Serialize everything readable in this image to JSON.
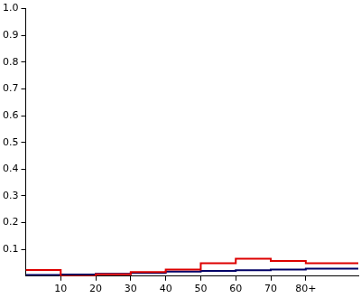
{
  "chart_data": {
    "type": "histogram",
    "bins": [
      0,
      10,
      20,
      30,
      40,
      50,
      60,
      70,
      80,
      95
    ],
    "series": [
      {
        "color": "#dd0000",
        "values": [
          0.023,
          0.0,
          0.007,
          0.015,
          0.025,
          0.048,
          0.065,
          0.057,
          0.048
        ]
      },
      {
        "color": "#000066",
        "values": [
          0.004,
          0.006,
          0.009,
          0.012,
          0.017,
          0.02,
          0.022,
          0.025,
          0.028
        ]
      }
    ],
    "xlim": [
      0,
      95
    ],
    "xticks": [
      10,
      20,
      30,
      40,
      50,
      60,
      70,
      {
        "value": 80,
        "label": "80+"
      }
    ],
    "ylim": [
      0,
      1
    ],
    "yticks": [
      0.1,
      0.2,
      0.3,
      0.4,
      0.5,
      0.6,
      0.7,
      0.8,
      0.9,
      {
        "value": 1,
        "label": "1.0"
      }
    ],
    "grid": false
  }
}
